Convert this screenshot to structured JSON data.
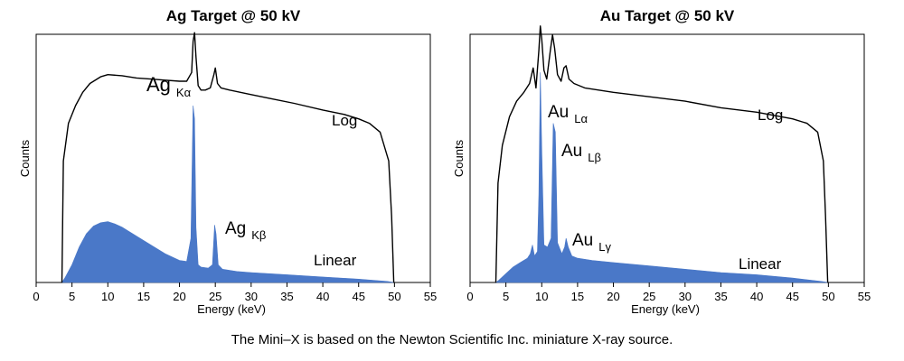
{
  "caption": "The Mini–X is based on the Newton Scientific Inc. miniature X-ray source.",
  "colors": {
    "linear_fill": "#4a78c8",
    "log_line": "#000000",
    "axis": "#000000"
  },
  "chart_data": [
    {
      "type": "area",
      "title": "Ag Target @ 50 kV",
      "xlabel": "Energy (keV)",
      "ylabel": "Counts",
      "xlim": [
        0,
        55
      ],
      "xticks": [
        0,
        5,
        10,
        15,
        20,
        25,
        30,
        35,
        40,
        45,
        50,
        55
      ],
      "y_scale": "relative",
      "grid": false,
      "series": [
        {
          "name": "Log",
          "x": [
            3.6,
            3.8,
            4.5,
            5.5,
            6.5,
            7.5,
            9,
            10,
            12,
            14,
            16,
            18,
            20,
            21,
            21.7,
            21.9,
            22.1,
            22.3,
            22.6,
            23,
            23.6,
            24.3,
            24.8,
            25.0,
            25.3,
            25.8,
            27,
            30,
            33,
            36,
            40,
            43,
            45,
            46.5,
            48,
            49.2,
            49.6,
            49.9
          ],
          "y": [
            0.0,
            0.55,
            0.72,
            0.8,
            0.86,
            0.9,
            0.93,
            0.94,
            0.935,
            0.925,
            0.92,
            0.915,
            0.91,
            0.91,
            0.95,
            1.09,
            1.13,
            1.02,
            0.89,
            0.87,
            0.87,
            0.88,
            0.94,
            0.97,
            0.9,
            0.88,
            0.87,
            0.85,
            0.83,
            0.81,
            0.78,
            0.76,
            0.74,
            0.72,
            0.68,
            0.55,
            0.3,
            0.0
          ]
        },
        {
          "name": "Linear",
          "x": [
            3.6,
            4,
            5,
            6,
            7,
            8,
            9,
            10,
            11,
            12,
            14,
            16,
            18,
            20,
            21,
            21.6,
            21.9,
            22.1,
            22.3,
            22.6,
            23,
            24,
            24.6,
            24.9,
            25.1,
            25.4,
            26,
            28,
            30,
            35,
            40,
            45,
            49,
            50
          ],
          "y": [
            0.0,
            0.02,
            0.08,
            0.16,
            0.22,
            0.255,
            0.27,
            0.275,
            0.265,
            0.25,
            0.21,
            0.17,
            0.13,
            0.1,
            0.095,
            0.2,
            0.8,
            0.74,
            0.25,
            0.08,
            0.07,
            0.065,
            0.08,
            0.26,
            0.22,
            0.08,
            0.06,
            0.05,
            0.045,
            0.035,
            0.025,
            0.015,
            0.005,
            0.0
          ]
        }
      ],
      "annotations": [
        {
          "text": "Ag",
          "sub": "Kα"
        },
        {
          "text": "Ag",
          "sub": "Kβ"
        },
        {
          "text": "Log"
        },
        {
          "text": "Linear"
        }
      ]
    },
    {
      "type": "area",
      "title": "Au Target @ 50 kV",
      "xlabel": "Energy (keV)",
      "ylabel": "Counts",
      "xlim": [
        0,
        55
      ],
      "xticks": [
        0,
        5,
        10,
        15,
        20,
        25,
        30,
        35,
        40,
        45,
        50,
        55
      ],
      "y_scale": "relative",
      "grid": false,
      "series": [
        {
          "name": "Log",
          "x": [
            3.6,
            3.9,
            4.5,
            5.5,
            6.5,
            7.5,
            8.3,
            8.8,
            9.2,
            9.6,
            9.8,
            10.0,
            10.3,
            10.7,
            11.2,
            11.5,
            11.8,
            12.2,
            12.7,
            13.1,
            13.4,
            13.8,
            14.5,
            16,
            20,
            25,
            30,
            35,
            40,
            45,
            47,
            48.5,
            49.3,
            49.6,
            49.9
          ],
          "y": [
            0.0,
            0.45,
            0.62,
            0.75,
            0.82,
            0.86,
            0.9,
            0.97,
            0.88,
            1.05,
            1.16,
            1.1,
            0.96,
            0.92,
            1.05,
            1.12,
            1.06,
            0.94,
            0.91,
            0.97,
            0.98,
            0.92,
            0.9,
            0.88,
            0.86,
            0.84,
            0.82,
            0.79,
            0.77,
            0.74,
            0.72,
            0.68,
            0.55,
            0.3,
            0.0
          ]
        },
        {
          "name": "Linear",
          "x": [
            3.6,
            4,
            5,
            6,
            7,
            8,
            8.4,
            8.7,
            9,
            9.4,
            9.6,
            9.8,
            10.0,
            10.3,
            10.8,
            11.3,
            11.6,
            11.9,
            12.2,
            12.8,
            13.2,
            13.4,
            13.7,
            14.2,
            15,
            17,
            20,
            25,
            30,
            35,
            40,
            45,
            49,
            50
          ],
          "y": [
            0.0,
            0.01,
            0.04,
            0.07,
            0.09,
            0.11,
            0.13,
            0.17,
            0.12,
            0.14,
            0.4,
            0.95,
            0.6,
            0.17,
            0.16,
            0.2,
            0.72,
            0.68,
            0.18,
            0.13,
            0.16,
            0.2,
            0.16,
            0.12,
            0.11,
            0.1,
            0.09,
            0.075,
            0.06,
            0.045,
            0.035,
            0.02,
            0.005,
            0.0
          ]
        }
      ],
      "annotations": [
        {
          "text": "Au",
          "sub": "Lα"
        },
        {
          "text": "Au",
          "sub": "Lβ"
        },
        {
          "text": "Au",
          "sub": "Lγ"
        },
        {
          "text": "Log"
        },
        {
          "text": "Linear"
        }
      ]
    }
  ]
}
